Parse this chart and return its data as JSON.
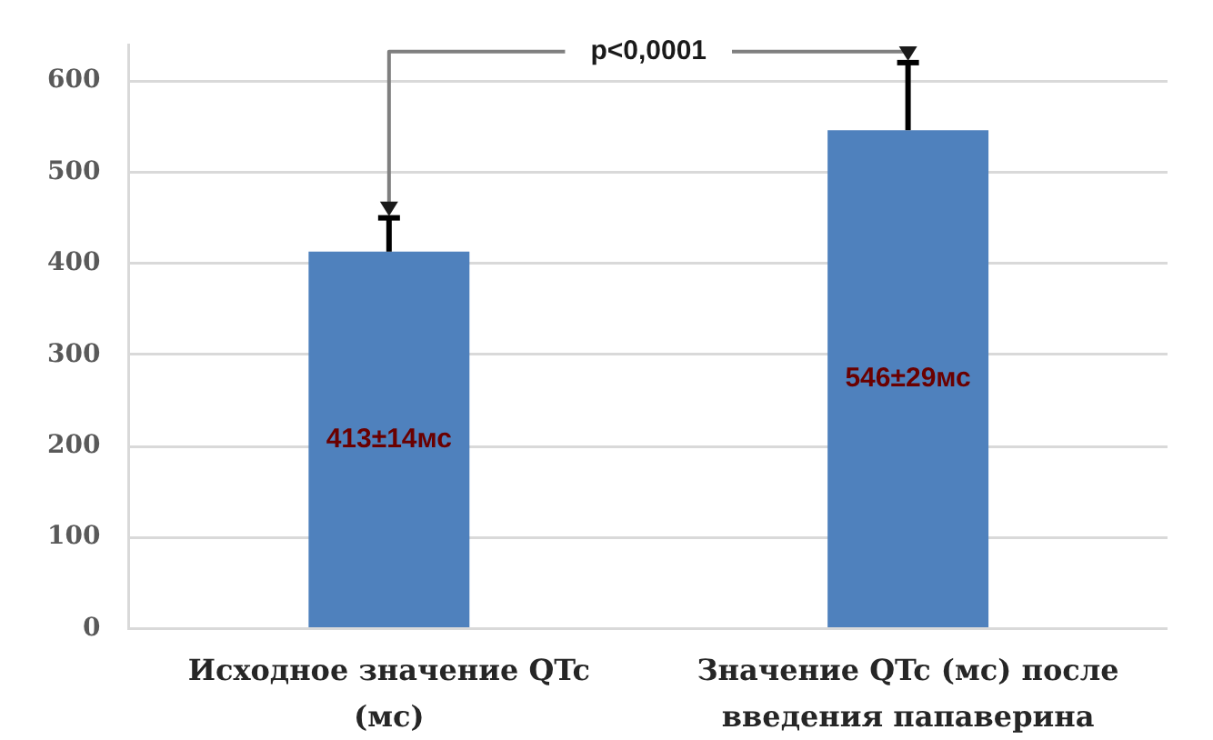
{
  "chart_data": {
    "type": "bar",
    "categories": [
      "Исходное значение QTc (мс)",
      "Значение QTc (мс) после введения папаверина"
    ],
    "values": [
      413,
      546
    ],
    "color": "#4f81bd",
    "errors": [
      [
        413,
        450
      ],
      [
        546,
        620
      ]
    ],
    "value_labels": [
      "413±14мс",
      "546±29мс"
    ],
    "ylim": [
      0,
      640
    ],
    "yticks": [
      0,
      100,
      200,
      300,
      400,
      500,
      600
    ],
    "grid": "y",
    "annotations": [
      {
        "text": "p<0,0001",
        "x": "Исходное значение QTc (мс)",
        "y": 450
      }
    ]
  }
}
